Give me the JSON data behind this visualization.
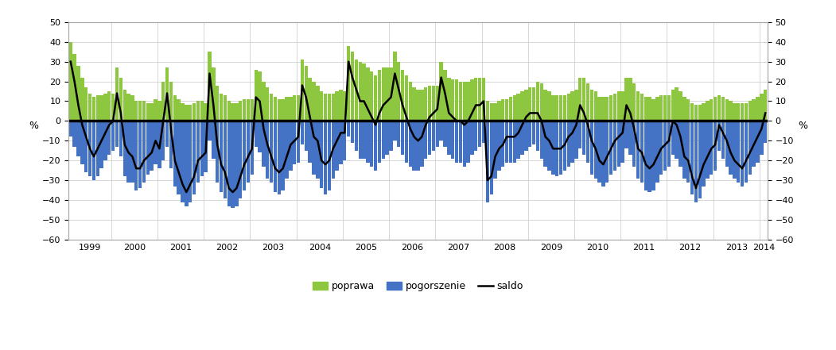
{
  "ylabel_left": "%",
  "ylabel_right": "%",
  "ylim": [
    -60,
    50
  ],
  "yticks": [
    -60,
    -50,
    -40,
    -30,
    -20,
    -10,
    0,
    10,
    20,
    30,
    40,
    50
  ],
  "bar_color_pos": "#8dc63f",
  "bar_color_neg": "#4472c4",
  "line_color": "#000000",
  "bg_color": "#ffffff",
  "grid_color": "#d0d0d0",
  "legend_labels": [
    "poprawa",
    "pogorszenie",
    "saldo"
  ],
  "start_year": 1999,
  "start_month": 2,
  "poprawa": [
    40,
    34,
    28,
    22,
    17,
    14,
    12,
    13,
    13,
    14,
    15,
    14,
    27,
    22,
    16,
    14,
    13,
    10,
    10,
    10,
    9,
    9,
    11,
    10,
    20,
    27,
    20,
    13,
    11,
    9,
    8,
    8,
    9,
    10,
    10,
    9,
    35,
    27,
    18,
    14,
    13,
    10,
    9,
    9,
    10,
    11,
    11,
    11,
    26,
    25,
    20,
    17,
    14,
    12,
    11,
    11,
    12,
    12,
    13,
    13,
    31,
    28,
    22,
    20,
    18,
    15,
    14,
    14,
    14,
    15,
    16,
    15,
    38,
    35,
    31,
    30,
    29,
    27,
    25,
    23,
    26,
    27,
    27,
    27,
    35,
    30,
    26,
    23,
    20,
    17,
    16,
    16,
    17,
    18,
    18,
    18,
    30,
    26,
    22,
    21,
    21,
    20,
    20,
    20,
    21,
    22,
    22,
    22,
    10,
    9,
    9,
    10,
    11,
    11,
    12,
    13,
    14,
    15,
    16,
    17,
    17,
    20,
    19,
    16,
    15,
    13,
    13,
    13,
    13,
    14,
    15,
    16,
    22,
    22,
    19,
    16,
    15,
    12,
    12,
    12,
    13,
    14,
    15,
    15,
    22,
    22,
    19,
    15,
    14,
    12,
    12,
    11,
    12,
    13,
    13,
    13,
    16,
    17,
    15,
    12,
    11,
    9,
    8,
    8,
    9,
    10,
    11,
    12,
    13,
    12,
    11,
    10,
    9,
    9,
    9,
    9,
    10,
    11,
    12,
    14,
    16
  ],
  "pogorszenie": [
    -8,
    -13,
    -18,
    -22,
    -26,
    -28,
    -30,
    -28,
    -24,
    -20,
    -17,
    -15,
    -13,
    -18,
    -28,
    -31,
    -31,
    -35,
    -34,
    -31,
    -27,
    -25,
    -22,
    -24,
    -20,
    -13,
    -24,
    -33,
    -37,
    -41,
    -43,
    -41,
    -37,
    -31,
    -28,
    -26,
    -10,
    -19,
    -31,
    -36,
    -39,
    -43,
    -44,
    -43,
    -39,
    -35,
    -31,
    -27,
    -13,
    -16,
    -23,
    -29,
    -31,
    -36,
    -37,
    -35,
    -29,
    -25,
    -22,
    -21,
    -12,
    -15,
    -21,
    -27,
    -29,
    -34,
    -37,
    -35,
    -29,
    -25,
    -22,
    -20,
    -8,
    -11,
    -15,
    -19,
    -19,
    -21,
    -23,
    -25,
    -21,
    -19,
    -17,
    -15,
    -10,
    -13,
    -17,
    -21,
    -23,
    -25,
    -25,
    -23,
    -19,
    -17,
    -15,
    -13,
    -10,
    -13,
    -17,
    -19,
    -21,
    -21,
    -23,
    -21,
    -17,
    -15,
    -13,
    -11,
    -41,
    -37,
    -29,
    -25,
    -23,
    -21,
    -21,
    -21,
    -19,
    -17,
    -15,
    -13,
    -12,
    -15,
    -19,
    -23,
    -25,
    -27,
    -28,
    -27,
    -25,
    -23,
    -21,
    -19,
    -14,
    -17,
    -21,
    -27,
    -29,
    -31,
    -33,
    -31,
    -27,
    -25,
    -23,
    -21,
    -14,
    -17,
    -23,
    -29,
    -31,
    -35,
    -36,
    -35,
    -31,
    -27,
    -25,
    -23,
    -17,
    -19,
    -23,
    -29,
    -31,
    -37,
    -41,
    -39,
    -33,
    -29,
    -27,
    -25,
    -15,
    -19,
    -23,
    -27,
    -29,
    -31,
    -33,
    -31,
    -27,
    -23,
    -21,
    -17,
    -11
  ],
  "saldo": [
    30,
    20,
    8,
    -2,
    -8,
    -14,
    -18,
    -14,
    -10,
    -6,
    -2,
    0,
    14,
    4,
    -12,
    -16,
    -18,
    -24,
    -24,
    -20,
    -18,
    -16,
    -10,
    -14,
    0,
    14,
    -4,
    -20,
    -26,
    -32,
    -36,
    -32,
    -28,
    -20,
    -18,
    -16,
    24,
    8,
    -12,
    -22,
    -26,
    -34,
    -36,
    -34,
    -28,
    -22,
    -18,
    -14,
    12,
    10,
    -4,
    -12,
    -18,
    -24,
    -26,
    -24,
    -18,
    -12,
    -10,
    -8,
    18,
    12,
    2,
    -8,
    -10,
    -20,
    -22,
    -20,
    -14,
    -10,
    -6,
    -6,
    30,
    22,
    16,
    10,
    10,
    6,
    2,
    -2,
    4,
    8,
    10,
    12,
    24,
    16,
    8,
    2,
    -4,
    -8,
    -10,
    -8,
    -2,
    2,
    4,
    6,
    22,
    14,
    4,
    2,
    0,
    0,
    -2,
    0,
    4,
    8,
    8,
    10,
    -30,
    -28,
    -18,
    -14,
    -12,
    -8,
    -8,
    -8,
    -6,
    -2,
    2,
    4,
    4,
    4,
    0,
    -8,
    -10,
    -14,
    -14,
    -14,
    -12,
    -8,
    -6,
    -2,
    8,
    4,
    -2,
    -10,
    -14,
    -20,
    -22,
    -18,
    -14,
    -10,
    -8,
    -6,
    8,
    4,
    -4,
    -14,
    -16,
    -22,
    -24,
    -22,
    -18,
    -14,
    -12,
    -10,
    0,
    -2,
    -8,
    -18,
    -20,
    -28,
    -34,
    -28,
    -22,
    -18,
    -14,
    -12,
    -2,
    -6,
    -10,
    -16,
    -20,
    -22,
    -24,
    -20,
    -16,
    -12,
    -8,
    -4,
    4
  ]
}
